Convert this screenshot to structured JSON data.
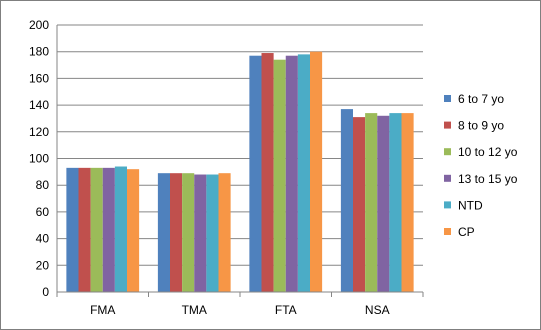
{
  "chart_data": {
    "type": "bar",
    "categories": [
      "FMA",
      "TMA",
      "FTA",
      "NSA"
    ],
    "series": [
      {
        "name": "6 to 7 yo",
        "color": "#4f81bd",
        "values": [
          93,
          89,
          177,
          137
        ]
      },
      {
        "name": "8 to 9 yo",
        "color": "#c0504d",
        "values": [
          93,
          89,
          179,
          131
        ]
      },
      {
        "name": "10 to 12 yo",
        "color": "#9bbb59",
        "values": [
          93,
          89,
          174,
          134
        ]
      },
      {
        "name": "13 to 15 yo",
        "color": "#8064a2",
        "values": [
          93,
          88,
          177,
          132
        ]
      },
      {
        "name": "NTD",
        "color": "#4bacc6",
        "values": [
          94,
          88,
          178,
          134
        ]
      },
      {
        "name": "CP",
        "color": "#f79646",
        "values": [
          92,
          89,
          180,
          134
        ]
      }
    ],
    "ylim": [
      0,
      200
    ],
    "ytick_step": 20,
    "grid": true,
    "legend_position": "right"
  }
}
